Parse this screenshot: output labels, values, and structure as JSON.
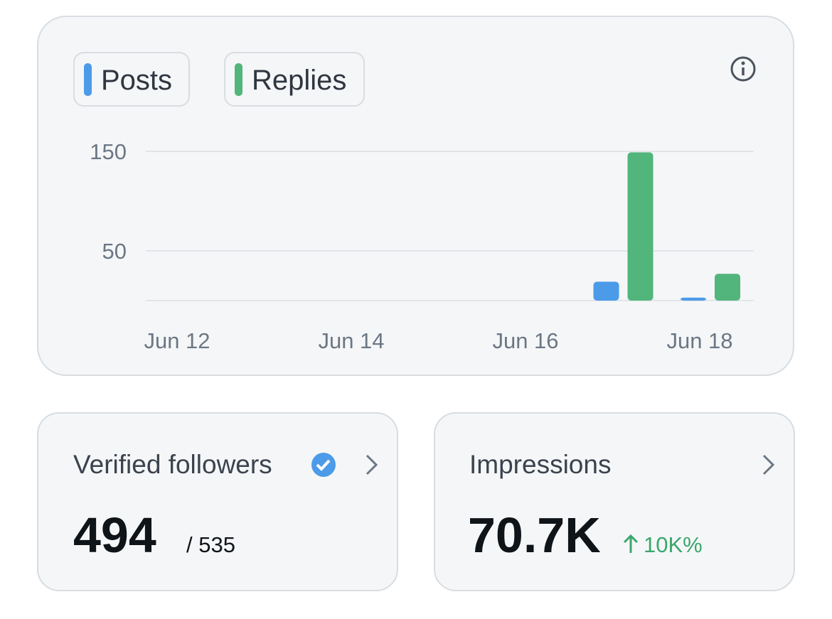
{
  "chart_data": {
    "type": "bar",
    "categories": [
      "Jun 12",
      null,
      "Jun 14",
      null,
      "Jun 16",
      null,
      "Jun 18"
    ],
    "series": [
      {
        "name": "Posts",
        "color": "#4c9be8",
        "values": [
          0,
          0,
          0,
          0,
          0,
          19,
          3
        ]
      },
      {
        "name": "Replies",
        "color": "#52b57c",
        "values": [
          0,
          0,
          0,
          0,
          0,
          149,
          27
        ]
      }
    ],
    "ylim": [
      0,
      150
    ],
    "yticks": [
      50,
      150
    ],
    "grid": true
  },
  "cards": [
    {
      "title": "Verified followers",
      "value": "494",
      "total": "/ 535"
    },
    {
      "title": "Impressions",
      "value": "70.7K",
      "change": "10K%"
    }
  ]
}
